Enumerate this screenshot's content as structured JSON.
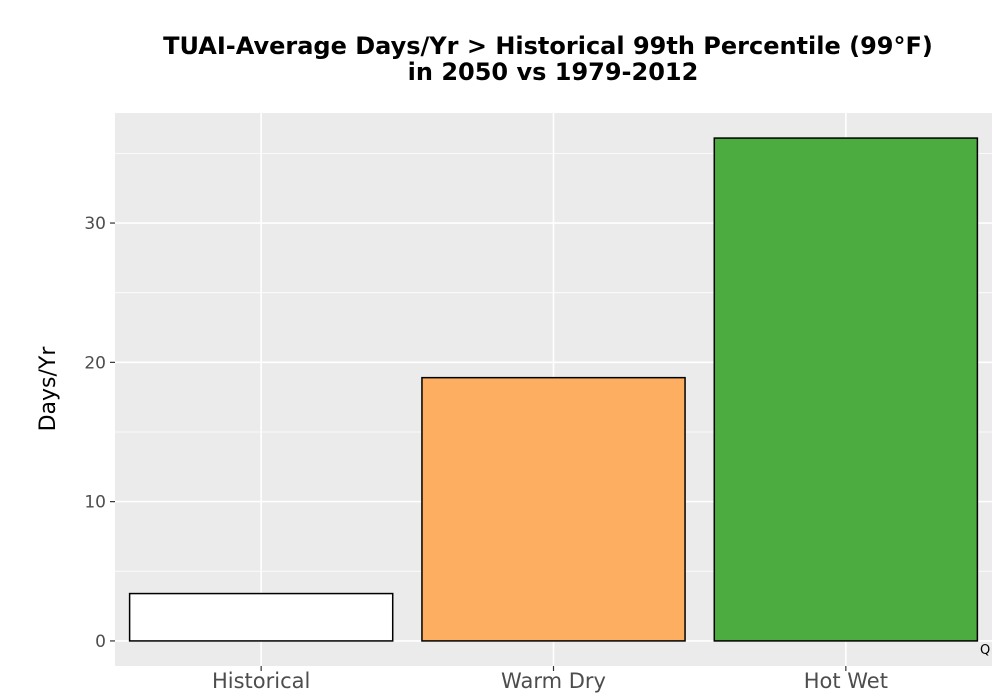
{
  "chart_data": {
    "type": "bar",
    "title_line1": "TUAI-Average Days/Yr > Historical 99th Percentile (99°F)",
    "title_line2": "in 2050 vs 1979-2012",
    "xlabel": "",
    "ylabel": "Days/Yr",
    "categories": [
      "Historical",
      "Warm Dry",
      "Hot Wet"
    ],
    "values": [
      3.4,
      18.9,
      36.1
    ],
    "bar_colors": [
      "#ffffff",
      "#fdae61",
      "#4dac3f"
    ],
    "bar_outline": "#000000",
    "ylim": [
      -1.8,
      37.9
    ],
    "yticks": [
      0,
      10,
      20,
      30
    ],
    "ytick_labels": [
      "0",
      "10",
      "20",
      "30"
    ],
    "grid": true,
    "panel_background": "#ebebeb",
    "grid_color": "#ffffff",
    "legend": "none",
    "corner_mark": "Q"
  }
}
